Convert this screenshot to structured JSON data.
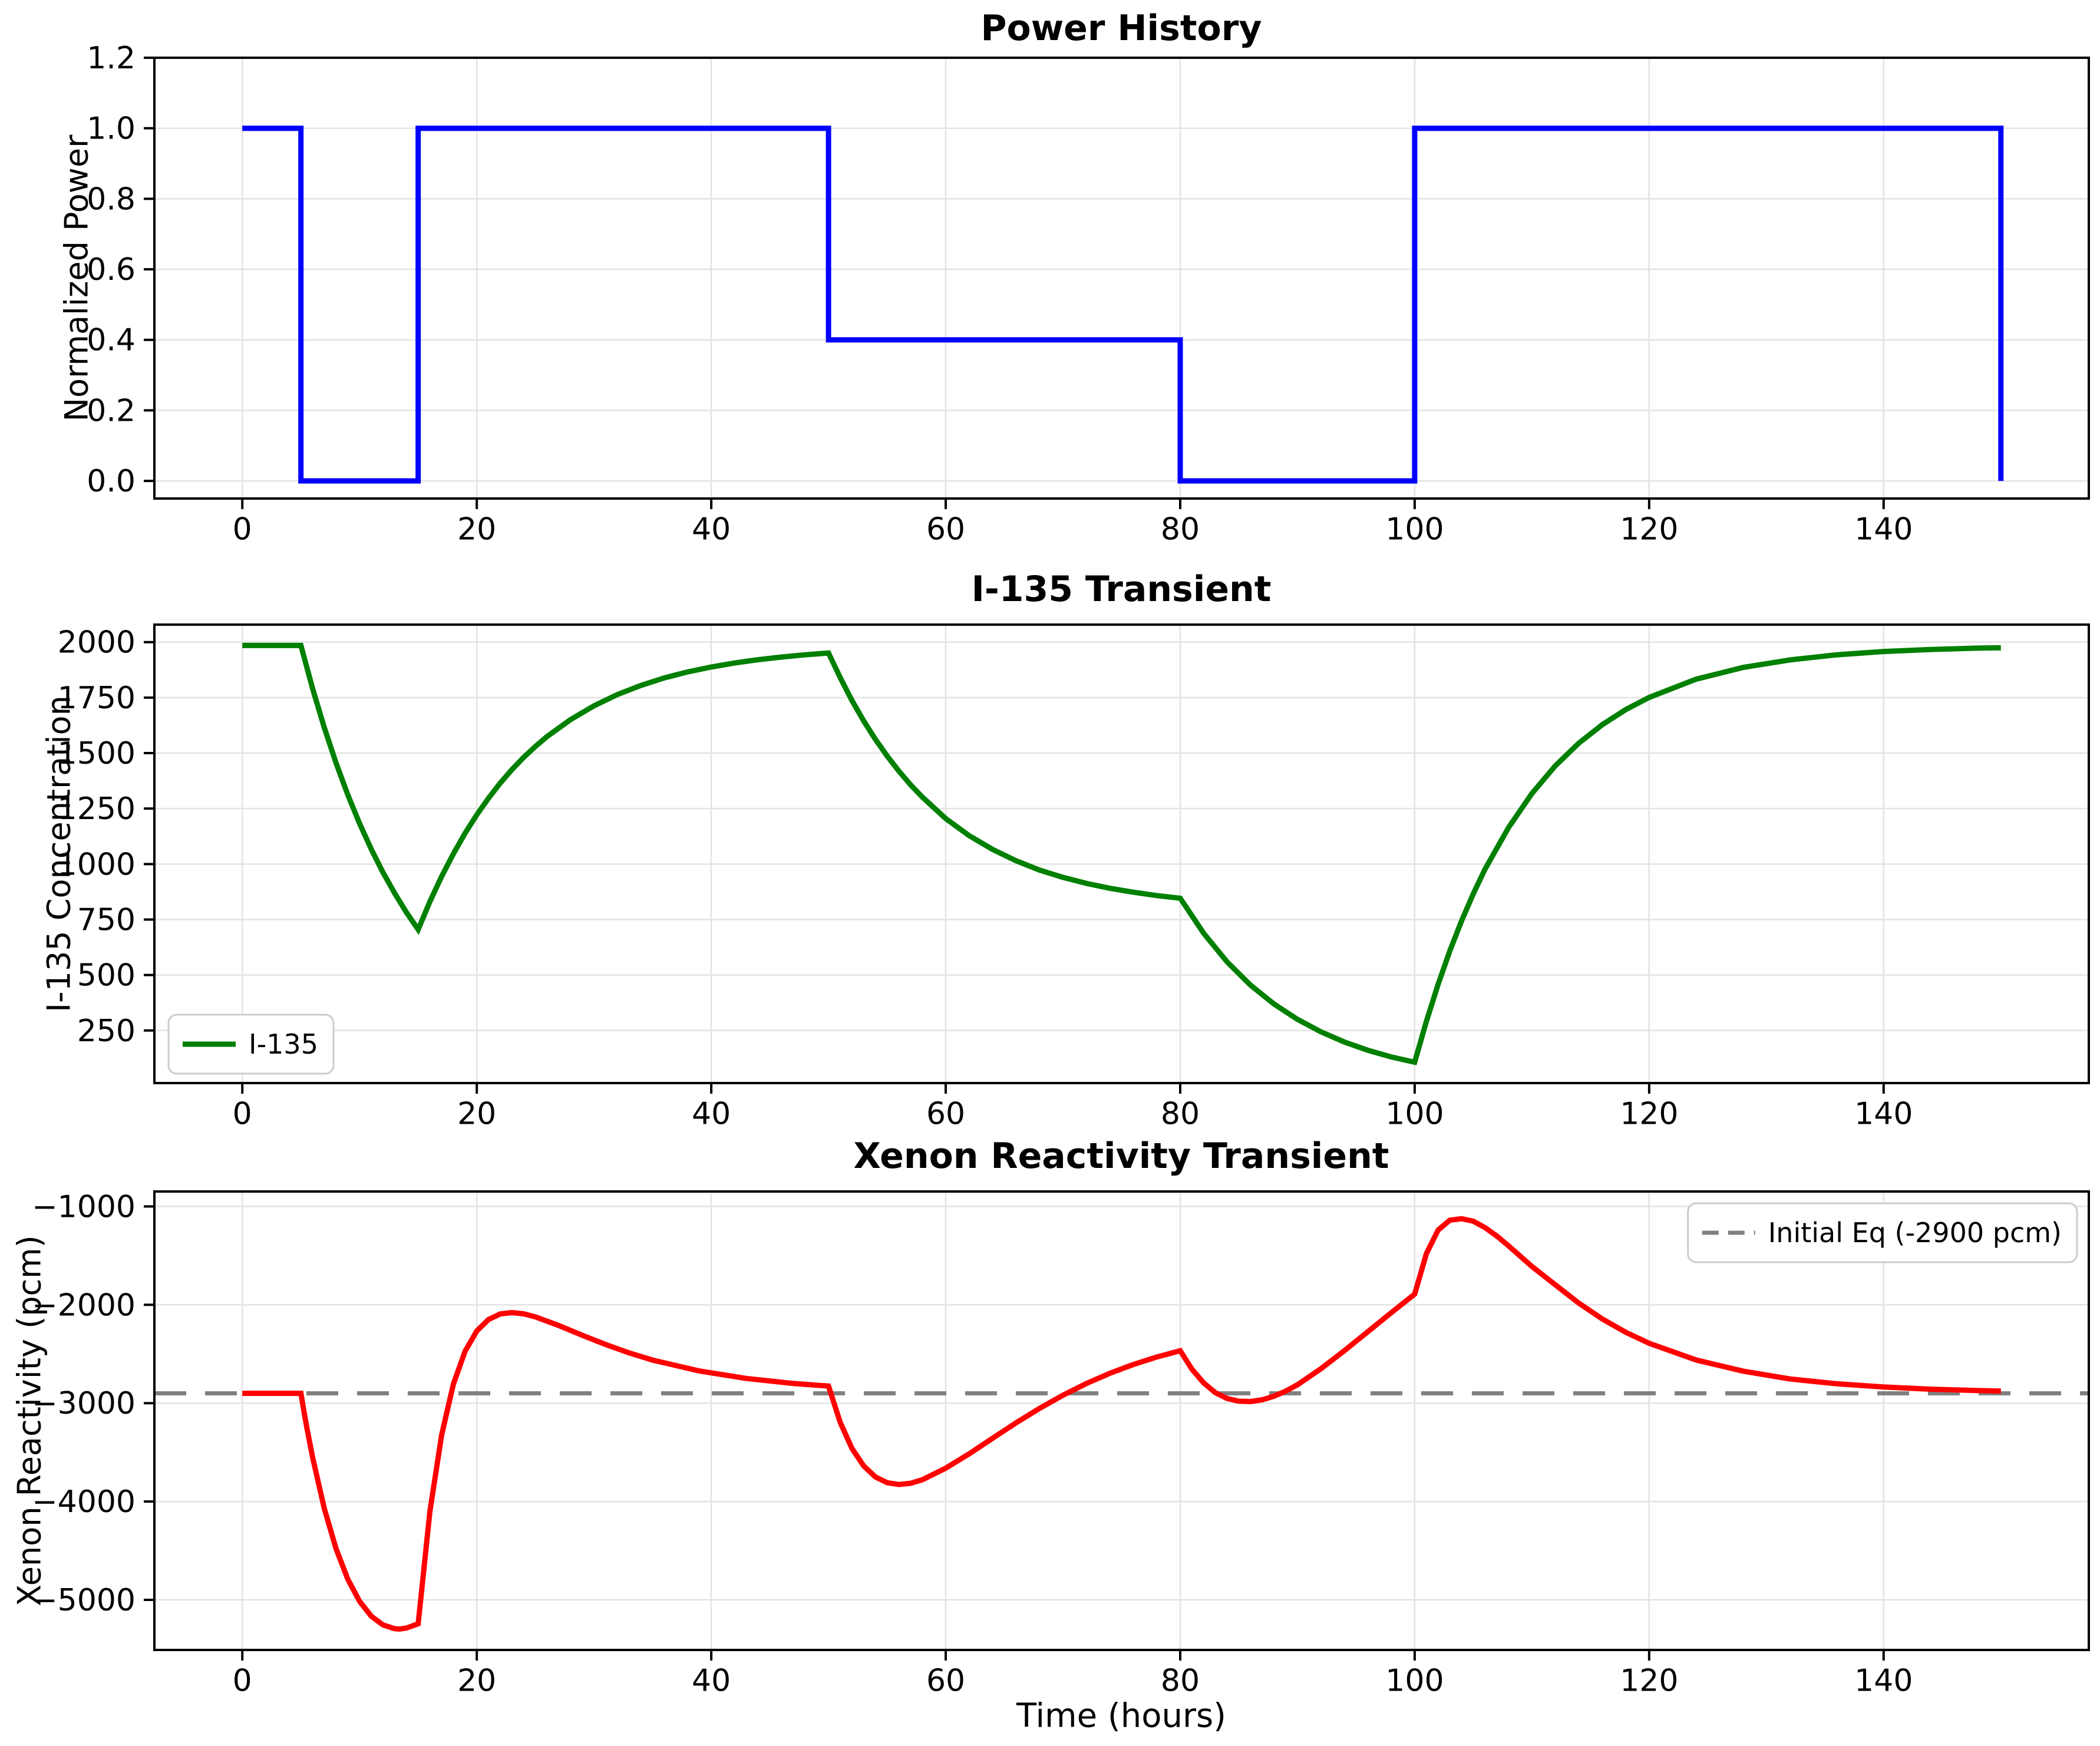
{
  "figure": {
    "background": "#ffffff",
    "xlabel": "Time (hours)"
  },
  "chart_data": [
    {
      "id": "power-history",
      "type": "line",
      "title": "Power History",
      "ylabel": "Normalized Power",
      "xlim": [
        -7.5,
        157.5
      ],
      "ylim": [
        -0.05,
        1.2
      ],
      "grid": true,
      "xticks": [
        0,
        20,
        40,
        60,
        80,
        100,
        120,
        140
      ],
      "xtick_labels": [
        "0",
        "20",
        "40",
        "60",
        "80",
        "100",
        "120",
        "140"
      ],
      "yticks": [
        0,
        0.2,
        0.4,
        0.6,
        0.8,
        1.0,
        1.2
      ],
      "ytick_labels": [
        "0.0",
        "0.2",
        "0.4",
        "0.6",
        "0.8",
        "1.0",
        "1.2"
      ],
      "legend": null,
      "series": [
        {
          "id": "power-line",
          "color": "#0000ff",
          "dash": false,
          "points": [
            [
              0,
              1
            ],
            [
              5,
              1
            ],
            [
              5,
              0
            ],
            [
              15,
              0
            ],
            [
              15,
              1
            ],
            [
              50,
              1
            ],
            [
              50,
              0.4
            ],
            [
              80,
              0.4
            ],
            [
              80,
              0
            ],
            [
              100,
              0
            ],
            [
              100,
              1
            ],
            [
              150,
              1
            ],
            [
              150,
              0
            ]
          ]
        }
      ]
    },
    {
      "id": "i135-transient",
      "type": "line",
      "title": "I-135 Transient",
      "ylabel": "I-135 Concentration",
      "xlim": [
        -7.5,
        157.5
      ],
      "ylim": [
        13,
        2079
      ],
      "grid": true,
      "xticks": [
        0,
        20,
        40,
        60,
        80,
        100,
        120,
        140
      ],
      "xtick_labels": [
        "0",
        "20",
        "40",
        "60",
        "80",
        "100",
        "120",
        "140"
      ],
      "yticks": [
        250,
        500,
        750,
        1000,
        1250,
        1500,
        1750,
        2000
      ],
      "ytick_labels": [
        "250",
        "500",
        "750",
        "1000",
        "1250",
        "1500",
        "1750",
        "2000"
      ],
      "legend": {
        "position": "lower-left",
        "entries": [
          {
            "label": "I-135",
            "color": "#008000",
            "dash": false
          }
        ]
      },
      "series": [
        {
          "id": "i135-line",
          "color": "#008000",
          "dash": false,
          "points": [
            [
              0,
              1985
            ],
            [
              5,
              1985
            ],
            [
              6,
              1790
            ],
            [
              7,
              1614
            ],
            [
              8,
              1455
            ],
            [
              9,
              1312
            ],
            [
              10,
              1183
            ],
            [
              11,
              1067
            ],
            [
              12,
              962
            ],
            [
              13,
              868
            ],
            [
              14,
              782
            ],
            [
              15,
              705
            ],
            [
              16,
              831
            ],
            [
              17,
              944
            ],
            [
              18,
              1046
            ],
            [
              19,
              1139
            ],
            [
              20,
              1222
            ],
            [
              21,
              1297
            ],
            [
              22,
              1365
            ],
            [
              23,
              1426
            ],
            [
              24,
              1481
            ],
            [
              25,
              1530
            ],
            [
              26,
              1575
            ],
            [
              28,
              1651
            ],
            [
              30,
              1713
            ],
            [
              32,
              1764
            ],
            [
              34,
              1805
            ],
            [
              36,
              1839
            ],
            [
              38,
              1866
            ],
            [
              40,
              1888
            ],
            [
              42,
              1906
            ],
            [
              44,
              1921
            ],
            [
              46,
              1933
            ],
            [
              48,
              1943
            ],
            [
              50,
              1951
            ],
            [
              51,
              1840
            ],
            [
              52,
              1737
            ],
            [
              53,
              1645
            ],
            [
              54,
              1562
            ],
            [
              55,
              1487
            ],
            [
              56,
              1419
            ],
            [
              57,
              1357
            ],
            [
              58,
              1302
            ],
            [
              60,
              1205
            ],
            [
              62,
              1128
            ],
            [
              64,
              1066
            ],
            [
              66,
              1015
            ],
            [
              68,
              973
            ],
            [
              70,
              940
            ],
            [
              72,
              913
            ],
            [
              74,
              891
            ],
            [
              76,
              873
            ],
            [
              78,
              858
            ],
            [
              80,
              846
            ],
            [
              82,
              688
            ],
            [
              84,
              559
            ],
            [
              86,
              454
            ],
            [
              88,
              369
            ],
            [
              90,
              300
            ],
            [
              92,
              244
            ],
            [
              94,
              198
            ],
            [
              96,
              161
            ],
            [
              98,
              131
            ],
            [
              100,
              107
            ],
            [
              101,
              291
            ],
            [
              102,
              458
            ],
            [
              103,
              609
            ],
            [
              104,
              744
            ],
            [
              105,
              866
            ],
            [
              106,
              977
            ],
            [
              108,
              1164
            ],
            [
              110,
              1318
            ],
            [
              112,
              1443
            ],
            [
              114,
              1545
            ],
            [
              116,
              1628
            ],
            [
              118,
              1696
            ],
            [
              120,
              1751
            ],
            [
              124,
              1833
            ],
            [
              128,
              1886
            ],
            [
              132,
              1920
            ],
            [
              136,
              1943
            ],
            [
              140,
              1958
            ],
            [
              144,
              1967
            ],
            [
              148,
              1973
            ],
            [
              150,
              1975
            ]
          ]
        }
      ]
    },
    {
      "id": "xenon-reactivity",
      "type": "line",
      "title": "Xenon Reactivity Transient",
      "ylabel": "Xenon Reactivity (pcm)",
      "xlim": [
        -7.5,
        157.5
      ],
      "ylim": [
        -5509,
        -848
      ],
      "grid": true,
      "xticks": [
        0,
        20,
        40,
        60,
        80,
        100,
        120,
        140
      ],
      "xtick_labels": [
        "0",
        "20",
        "40",
        "60",
        "80",
        "100",
        "120",
        "140"
      ],
      "yticks": [
        -5000,
        -4000,
        -3000,
        -2000,
        -1000
      ],
      "ytick_labels": [
        "−5000",
        "−4000",
        "−3000",
        "−2000",
        "−1000"
      ],
      "legend": {
        "position": "upper-right",
        "entries": [
          {
            "label": "Initial Eq (-2900 pcm)",
            "color": "#808080",
            "dash": true
          }
        ]
      },
      "equilibrium_pcm": -2900,
      "series": [
        {
          "id": "equilibrium-line",
          "color": "#808080",
          "dash": true,
          "points": [
            [
              -7.5,
              -2900
            ],
            [
              157.5,
              -2900
            ]
          ]
        },
        {
          "id": "xenon-line",
          "color": "#ff0000",
          "dash": false,
          "points": [
            [
              0,
              -2900
            ],
            [
              5,
              -2900
            ],
            [
              5.25,
              -3078
            ],
            [
              5.5,
              -3248
            ],
            [
              6,
              -3553
            ],
            [
              7,
              -4074
            ],
            [
              8,
              -4481
            ],
            [
              9,
              -4790
            ],
            [
              10,
              -5014
            ],
            [
              11,
              -5166
            ],
            [
              12,
              -5255
            ],
            [
              13,
              -5293
            ],
            [
              13.4,
              -5297
            ],
            [
              14,
              -5286
            ],
            [
              15,
              -5243
            ],
            [
              16,
              -4101
            ],
            [
              17,
              -3324
            ],
            [
              18,
              -2807
            ],
            [
              19,
              -2472
            ],
            [
              20,
              -2266
            ],
            [
              21,
              -2149
            ],
            [
              22,
              -2093
            ],
            [
              23,
              -2079
            ],
            [
              24,
              -2092
            ],
            [
              25,
              -2123
            ],
            [
              27,
              -2211
            ],
            [
              29,
              -2310
            ],
            [
              31,
              -2404
            ],
            [
              33,
              -2489
            ],
            [
              35,
              -2562
            ],
            [
              39,
              -2673
            ],
            [
              43,
              -2749
            ],
            [
              47,
              -2800
            ],
            [
              50,
              -2826
            ],
            [
              51,
              -3196
            ],
            [
              52,
              -3460
            ],
            [
              53,
              -3638
            ],
            [
              54,
              -3750
            ],
            [
              55,
              -3809
            ],
            [
              56,
              -3827
            ],
            [
              57,
              -3815
            ],
            [
              58,
              -3779
            ],
            [
              60,
              -3661
            ],
            [
              62,
              -3515
            ],
            [
              64,
              -3357
            ],
            [
              66,
              -3200
            ],
            [
              68,
              -3053
            ],
            [
              70,
              -2919
            ],
            [
              72,
              -2800
            ],
            [
              74,
              -2696
            ],
            [
              76,
              -2607
            ],
            [
              78,
              -2531
            ],
            [
              80,
              -2467
            ],
            [
              81,
              -2655
            ],
            [
              82,
              -2794
            ],
            [
              83,
              -2894
            ],
            [
              84,
              -2952
            ],
            [
              85,
              -2980
            ],
            [
              86,
              -2984
            ],
            [
              87,
              -2966
            ],
            [
              88,
              -2929
            ],
            [
              89,
              -2877
            ],
            [
              90,
              -2813
            ],
            [
              92,
              -2650
            ],
            [
              94,
              -2467
            ],
            [
              96,
              -2274
            ],
            [
              98,
              -2081
            ],
            [
              100,
              -1891
            ],
            [
              101,
              -1480
            ],
            [
              102,
              -1240
            ],
            [
              103,
              -1140
            ],
            [
              104,
              -1125
            ],
            [
              105,
              -1150
            ],
            [
              106,
              -1215
            ],
            [
              107,
              -1300
            ],
            [
              108,
              -1400
            ],
            [
              110,
              -1610
            ],
            [
              112,
              -1797
            ],
            [
              114,
              -1983
            ],
            [
              116,
              -2144
            ],
            [
              118,
              -2279
            ],
            [
              120,
              -2391
            ],
            [
              124,
              -2561
            ],
            [
              128,
              -2674
            ],
            [
              132,
              -2754
            ],
            [
              136,
              -2803
            ],
            [
              140,
              -2836
            ],
            [
              144,
              -2858
            ],
            [
              148,
              -2872
            ],
            [
              150,
              -2877
            ]
          ]
        }
      ]
    }
  ]
}
